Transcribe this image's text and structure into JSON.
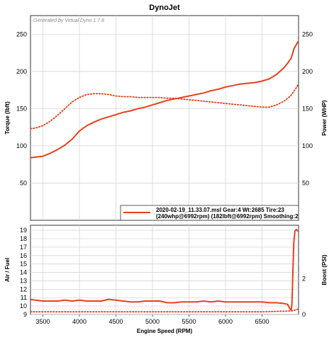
{
  "chart_data": [
    {
      "type": "line",
      "title": "DynoJet",
      "watermark": "Generated by Virtual Dyno 1.7.8",
      "xlabel": "Engine Speed (RPM)",
      "ylabel": "Torque (lbft)",
      "ylabel_right": "Power (WHP)",
      "xlim": [
        3330,
        7000
      ],
      "ylim": [
        0,
        275
      ],
      "ylim_right": [
        0,
        275
      ],
      "xticks": [
        3500,
        4000,
        4500,
        5000,
        5500,
        6000,
        6500
      ],
      "yticks": [
        50,
        100,
        150,
        200,
        250
      ],
      "yticks_right": [
        50,
        100,
        150,
        200,
        250
      ],
      "grid": true,
      "legend": {
        "placement": "bottom-right",
        "line1": "2020-02-19_11.33.07.msl Gear:4 Wt:2685 Tire:23",
        "line2": "(240whp@6992rpm) (182lbft@6992rpm) Smoothing:2",
        "color": "#e8401c"
      },
      "series": [
        {
          "role": "power",
          "style": "solid",
          "color": "#e8401c",
          "x": [
            3330,
            3400,
            3500,
            3600,
            3700,
            3800,
            3900,
            4000,
            4100,
            4200,
            4300,
            4400,
            4500,
            4600,
            4700,
            4800,
            4900,
            5000,
            5100,
            5200,
            5300,
            5400,
            5500,
            5600,
            5700,
            5800,
            5900,
            6000,
            6100,
            6200,
            6300,
            6400,
            6500,
            6600,
            6700,
            6800,
            6850,
            6900,
            6940,
            6970,
            6992
          ],
          "values": [
            84,
            85,
            86,
            90,
            95,
            101,
            109,
            120,
            127,
            132,
            136,
            139,
            142,
            145,
            147,
            150,
            152,
            155,
            158,
            161,
            163,
            165,
            167,
            169,
            171,
            174,
            176,
            179,
            181,
            183,
            184,
            185,
            187,
            190,
            196,
            205,
            211,
            218,
            231,
            236,
            240
          ]
        },
        {
          "role": "torque",
          "style": "dotted",
          "color": "#e8401c",
          "x": [
            3330,
            3400,
            3500,
            3600,
            3700,
            3800,
            3900,
            4000,
            4100,
            4200,
            4300,
            4400,
            4500,
            4600,
            4700,
            4800,
            4900,
            5000,
            5100,
            5200,
            5300,
            5400,
            5500,
            5600,
            5700,
            5800,
            5900,
            6000,
            6100,
            6200,
            6300,
            6400,
            6500,
            6600,
            6700,
            6800,
            6850,
            6900,
            6940,
            6970,
            6992
          ],
          "values": [
            123,
            124,
            127,
            133,
            141,
            150,
            159,
            165,
            169,
            170,
            170,
            169,
            167,
            166,
            166,
            165,
            165,
            165,
            165,
            164,
            164,
            163,
            162,
            161,
            160,
            159,
            158,
            157,
            156,
            155,
            154,
            153,
            152,
            152,
            155,
            160,
            164,
            168,
            174,
            178,
            182
          ]
        }
      ]
    },
    {
      "type": "line",
      "title": "",
      "xlabel": "Engine Speed (RPM)",
      "ylabel": "Air / Fuel",
      "ylabel_right": "Boost (PSI)",
      "xlim": [
        3330,
        7000
      ],
      "ylim": [
        9,
        19.6
      ],
      "ylim_right": [
        0,
        5
      ],
      "xticks": [
        3500,
        4000,
        4500,
        5000,
        5500,
        6000,
        6500
      ],
      "yticks": [
        9,
        10,
        11,
        12,
        13,
        14,
        15,
        16,
        17,
        18,
        19
      ],
      "yticks_right": [
        0,
        2
      ],
      "grid": true,
      "series": [
        {
          "role": "air-fuel",
          "style": "solid",
          "color": "#e8401c",
          "x": [
            3330,
            3400,
            3500,
            3600,
            3700,
            3800,
            3900,
            4000,
            4100,
            4200,
            4300,
            4400,
            4500,
            4600,
            4700,
            4800,
            4900,
            5000,
            5100,
            5200,
            5300,
            5400,
            5500,
            5600,
            5700,
            5800,
            5900,
            6000,
            6100,
            6200,
            6300,
            6400,
            6500,
            6600,
            6700,
            6800,
            6850,
            6880,
            6900,
            6910,
            6920,
            6935,
            6950,
            6970,
            6992
          ],
          "values": [
            10.8,
            10.7,
            10.6,
            10.6,
            10.6,
            10.7,
            10.6,
            10.7,
            10.6,
            10.6,
            10.6,
            10.8,
            10.7,
            10.6,
            10.5,
            10.5,
            10.6,
            10.6,
            10.6,
            10.4,
            10.4,
            10.5,
            10.5,
            10.5,
            10.6,
            10.5,
            10.6,
            10.5,
            10.5,
            10.5,
            10.5,
            10.5,
            10.5,
            10.4,
            10.4,
            10.3,
            10.2,
            9.7,
            9.5,
            10.3,
            13.5,
            17.5,
            18.9,
            19.1,
            18.9
          ]
        },
        {
          "role": "boost",
          "style": "dotted",
          "color": "#e8401c",
          "x": [
            3330,
            4000,
            5000,
            6000,
            6500,
            6900,
            6950,
            6992
          ],
          "values": [
            0.15,
            0.15,
            0.15,
            0.15,
            0.15,
            0.2,
            0.25,
            0.3
          ]
        }
      ]
    }
  ]
}
